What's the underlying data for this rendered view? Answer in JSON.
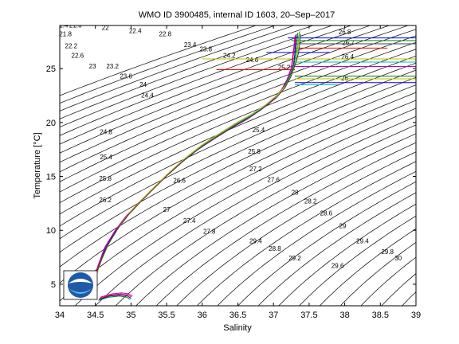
{
  "chart_data": {
    "type": "line",
    "title": "WMO ID 3900485, internal ID 1603, 20–Sep–2017",
    "xlabel": "Salinity",
    "ylabel": "Temperature [°C]",
    "xlim": [
      34,
      39
    ],
    "ylim": [
      3,
      29
    ],
    "xticks": [
      "34",
      "34.5",
      "35",
      "35.5",
      "36",
      "36.5",
      "37",
      "37.5",
      "38",
      "38.5",
      "39"
    ],
    "yticks": [
      "5",
      "10",
      "15",
      "20",
      "25"
    ],
    "grid": false,
    "legend": "none",
    "contours": {
      "quantity": "sigma-theta density",
      "levels": [
        21.4,
        21.6,
        21.8,
        22,
        22.2,
        22.4,
        22.6,
        22.8,
        23,
        23.2,
        23.4,
        23.6,
        23.8,
        24,
        24.2,
        24.4,
        24.6,
        24.8,
        25,
        25.2,
        25.4,
        25.6,
        25.8,
        26,
        26.2,
        26.4,
        26.6,
        26.8,
        27,
        27.2,
        27.4,
        27.6,
        27.8,
        28,
        28.2,
        28.4,
        28.6,
        28.8,
        29,
        29.2,
        29.4,
        29.6,
        29.8,
        30
      ],
      "labels": [
        {
          "text": "21.4",
          "s": 34.03,
          "t": 28.8
        },
        {
          "text": "21.6",
          "s": 34.22,
          "t": 28.8
        },
        {
          "text": "21.8",
          "s": 34.08,
          "t": 28.0
        },
        {
          "text": "22",
          "s": 34.64,
          "t": 28.6
        },
        {
          "text": "22.2",
          "s": 34.16,
          "t": 26.9
        },
        {
          "text": "22.4",
          "s": 35.06,
          "t": 28.3
        },
        {
          "text": "22.6",
          "s": 34.25,
          "t": 26.0
        },
        {
          "text": "22.8",
          "s": 35.48,
          "t": 28.0
        },
        {
          "text": "23",
          "s": 34.46,
          "t": 25.0
        },
        {
          "text": "23.2",
          "s": 34.74,
          "t": 25.0
        },
        {
          "text": "23.4",
          "s": 35.83,
          "t": 27.0
        },
        {
          "text": "23.6",
          "s": 34.93,
          "t": 24.1
        },
        {
          "text": "23.8",
          "s": 36.05,
          "t": 26.6
        },
        {
          "text": "24",
          "s": 35.17,
          "t": 23.3
        },
        {
          "text": "24.2",
          "s": 36.38,
          "t": 26.0
        },
        {
          "text": "24.4",
          "s": 35.23,
          "t": 22.3
        },
        {
          "text": "24.6",
          "s": 36.7,
          "t": 25.6
        },
        {
          "text": "24.8",
          "s": 34.65,
          "t": 18.9
        },
        {
          "text": "25.2",
          "s": 37.15,
          "t": 24.9
        },
        {
          "text": "25.4",
          "s": 34.65,
          "t": 16.6
        },
        {
          "text": "25.4",
          "s": 36.79,
          "t": 19.1
        },
        {
          "text": "25.8",
          "s": 34.64,
          "t": 14.6
        },
        {
          "text": "25.8",
          "s": 36.73,
          "t": 17.1
        },
        {
          "text": "26",
          "s": 38.0,
          "t": 23.9
        },
        {
          "text": "26.2",
          "s": 34.64,
          "t": 12.6
        },
        {
          "text": "26.4",
          "s": 38.04,
          "t": 25.9
        },
        {
          "text": "26.6",
          "s": 35.68,
          "t": 14.4
        },
        {
          "text": "26.7",
          "s": 38.05,
          "t": 27.2
        },
        {
          "text": "26.8",
          "s": 38.0,
          "t": 28.2
        },
        {
          "text": "27",
          "s": 35.5,
          "t": 11.7
        },
        {
          "text": "27.2",
          "s": 36.75,
          "t": 15.5
        },
        {
          "text": "27.4",
          "s": 35.82,
          "t": 10.7
        },
        {
          "text": "27.6",
          "s": 37.0,
          "t": 14.5
        },
        {
          "text": "27.8",
          "s": 36.1,
          "t": 9.7
        },
        {
          "text": "28",
          "s": 37.3,
          "t": 13.3
        },
        {
          "text": "28.2",
          "s": 37.52,
          "t": 12.5
        },
        {
          "text": "28.6",
          "s": 37.74,
          "t": 11.4
        },
        {
          "text": "29",
          "s": 37.97,
          "t": 10.2
        },
        {
          "text": "29.4",
          "s": 36.75,
          "t": 8.8
        },
        {
          "text": "28.8",
          "s": 37.02,
          "t": 8.1
        },
        {
          "text": "29.2",
          "s": 37.3,
          "t": 7.2
        },
        {
          "text": "29.4",
          "s": 38.25,
          "t": 8.8
        },
        {
          "text": "29.6",
          "s": 37.9,
          "t": 6.5
        },
        {
          "text": "29.8",
          "s": 38.6,
          "t": 7.8
        },
        {
          "text": "30",
          "s": 38.75,
          "t": 7.2
        }
      ]
    },
    "series": [
      {
        "color": "#0000ff",
        "s": [
          34.5,
          34.56,
          34.66,
          34.8,
          34.95,
          35.12,
          35.3,
          35.5,
          35.72,
          35.95,
          36.18,
          36.42,
          36.66,
          36.86,
          37.02,
          37.14,
          37.22,
          37.28,
          37.3,
          37.31,
          37.32
        ],
        "t": [
          5.8,
          7.0,
          8.6,
          10.1,
          11.4,
          12.6,
          13.8,
          15.1,
          16.4,
          17.6,
          18.6,
          19.6,
          20.5,
          21.4,
          22.3,
          23.2,
          24.2,
          25.3,
          26.4,
          27.4,
          28.2
        ]
      },
      {
        "color": "#008000",
        "s": [
          34.51,
          34.57,
          34.68,
          34.82,
          34.97,
          35.14,
          35.32,
          35.52,
          35.74,
          35.97,
          36.2,
          36.44,
          36.68,
          36.88,
          37.03,
          37.15,
          37.23,
          37.29,
          37.31,
          37.33,
          37.34
        ],
        "t": [
          5.9,
          7.1,
          8.7,
          10.2,
          11.5,
          12.7,
          13.9,
          15.2,
          16.5,
          17.7,
          18.7,
          19.7,
          20.6,
          21.5,
          22.4,
          23.3,
          24.3,
          25.4,
          26.5,
          27.5,
          28.3
        ]
      },
      {
        "color": "#ff0000",
        "s": [
          34.49,
          34.55,
          34.64,
          34.78,
          34.93,
          35.1,
          35.28,
          35.48,
          35.7,
          35.93,
          36.16,
          36.4,
          36.64,
          36.84,
          37.0,
          37.12,
          37.2,
          37.26,
          37.28,
          37.3,
          37.31
        ],
        "t": [
          5.7,
          6.9,
          8.5,
          10.0,
          11.3,
          12.5,
          13.7,
          15.0,
          16.3,
          17.5,
          18.5,
          19.5,
          20.4,
          21.3,
          22.2,
          23.1,
          24.1,
          25.2,
          26.3,
          27.3,
          28.1
        ]
      },
      {
        "color": "#00bfbf",
        "s": [
          34.52,
          34.58,
          34.69,
          34.83,
          34.98,
          35.15,
          35.33,
          35.53,
          35.75,
          35.98,
          36.21,
          36.45,
          36.69,
          36.89,
          37.05,
          37.17,
          37.25,
          37.31,
          37.33,
          37.35,
          37.36
        ],
        "t": [
          6.0,
          7.2,
          8.8,
          10.3,
          11.6,
          12.8,
          14.0,
          15.3,
          16.6,
          17.8,
          18.8,
          19.8,
          20.7,
          21.6,
          22.5,
          23.4,
          24.4,
          25.5,
          26.6,
          27.6,
          28.4
        ]
      },
      {
        "color": "#bf00bf",
        "s": [
          34.48,
          34.54,
          34.63,
          34.77,
          34.92,
          35.09,
          35.27,
          35.47,
          35.69,
          35.92,
          36.15,
          36.39,
          36.63,
          36.83,
          36.99,
          37.11,
          37.19,
          37.25,
          37.27,
          37.29,
          37.3
        ],
        "t": [
          5.6,
          6.8,
          8.4,
          9.9,
          11.2,
          12.4,
          13.6,
          14.9,
          16.2,
          17.4,
          18.4,
          19.4,
          20.3,
          21.2,
          22.1,
          23.0,
          24.0,
          25.1,
          26.2,
          27.2,
          28.0
        ]
      },
      {
        "color": "#bfbf00",
        "s": [
          34.53,
          34.59,
          34.7,
          34.84,
          34.99,
          35.16,
          35.34,
          35.54,
          35.76,
          35.99,
          36.22,
          36.46,
          36.7,
          36.9,
          37.06,
          37.18,
          37.26,
          37.32,
          37.34,
          37.36,
          37.37
        ],
        "t": [
          6.1,
          7.3,
          8.9,
          10.4,
          11.7,
          12.9,
          14.1,
          15.4,
          16.7,
          17.9,
          18.9,
          19.9,
          20.8,
          21.7,
          22.6,
          23.5,
          24.5,
          25.6,
          26.7,
          27.7,
          28.5
        ]
      },
      {
        "color": "#404040",
        "s": [
          34.5,
          34.57,
          34.67,
          34.81,
          34.96,
          35.13,
          35.31,
          35.51,
          35.73,
          35.96,
          36.19,
          36.43,
          36.67,
          36.87,
          37.04,
          37.16,
          37.24,
          37.3,
          37.35,
          37.37,
          37.38
        ],
        "t": [
          5.8,
          7.0,
          8.6,
          10.1,
          11.4,
          12.6,
          13.8,
          15.1,
          16.4,
          17.6,
          18.6,
          19.6,
          20.5,
          21.4,
          22.3,
          23.2,
          24.2,
          25.3,
          26.4,
          27.4,
          28.2
        ]
      }
    ],
    "bottom_cluster": [
      {
        "s": [
          34.55,
          34.7,
          34.85,
          34.95,
          35.0
        ],
        "t": [
          3.6,
          3.9,
          4.0,
          3.9,
          3.7
        ],
        "color": "#0000ff"
      },
      {
        "s": [
          34.56,
          34.72,
          34.86,
          34.96,
          35.01
        ],
        "t": [
          3.7,
          4.0,
          4.1,
          4.0,
          3.8
        ],
        "color": "#ff0000"
      },
      {
        "s": [
          34.54,
          34.69,
          34.84,
          34.94,
          34.99
        ],
        "t": [
          3.5,
          3.8,
          3.9,
          3.8,
          3.6
        ],
        "color": "#008000"
      },
      {
        "s": [
          34.57,
          34.73,
          34.87,
          34.97,
          35.02
        ],
        "t": [
          3.8,
          4.1,
          4.2,
          4.1,
          3.9
        ],
        "color": "#bf00bf"
      }
    ],
    "spikes": [
      {
        "t": 27.85,
        "s0": 37.2,
        "s1": 39.0,
        "color": "#0000ff"
      },
      {
        "t": 27.6,
        "s0": 37.25,
        "s1": 39.0,
        "color": "#008000"
      },
      {
        "t": 27.3,
        "s0": 37.3,
        "s1": 39.0,
        "color": "#404040"
      },
      {
        "t": 26.9,
        "s0": 37.3,
        "s1": 38.6,
        "color": "#ff0000"
      },
      {
        "t": 26.5,
        "s0": 36.9,
        "s1": 37.8,
        "color": "#0000ff"
      },
      {
        "t": 25.9,
        "s0": 36.0,
        "s1": 39.0,
        "color": "#bfbf00"
      },
      {
        "t": 25.6,
        "s0": 37.3,
        "s1": 39.0,
        "color": "#00bfbf"
      },
      {
        "t": 25.2,
        "s0": 37.3,
        "s1": 39.0,
        "color": "#bf00bf"
      },
      {
        "t": 24.9,
        "s0": 36.2,
        "s1": 37.3,
        "color": "#ff0000"
      },
      {
        "t": 24.3,
        "s0": 37.3,
        "s1": 39.0,
        "color": "#008000"
      },
      {
        "t": 24.05,
        "s0": 37.3,
        "s1": 39.0,
        "color": "#bfbf00"
      },
      {
        "t": 23.7,
        "s0": 37.3,
        "s1": 39.0,
        "color": "#0000ff"
      },
      {
        "t": 23.5,
        "s0": 37.3,
        "s1": 37.9,
        "color": "#00bfbf"
      }
    ]
  },
  "logo": {
    "text": "NOAA",
    "name": "noaa-logo"
  },
  "colors": {
    "axes": "#000000",
    "background": "#ffffff",
    "contour": "#000000"
  }
}
